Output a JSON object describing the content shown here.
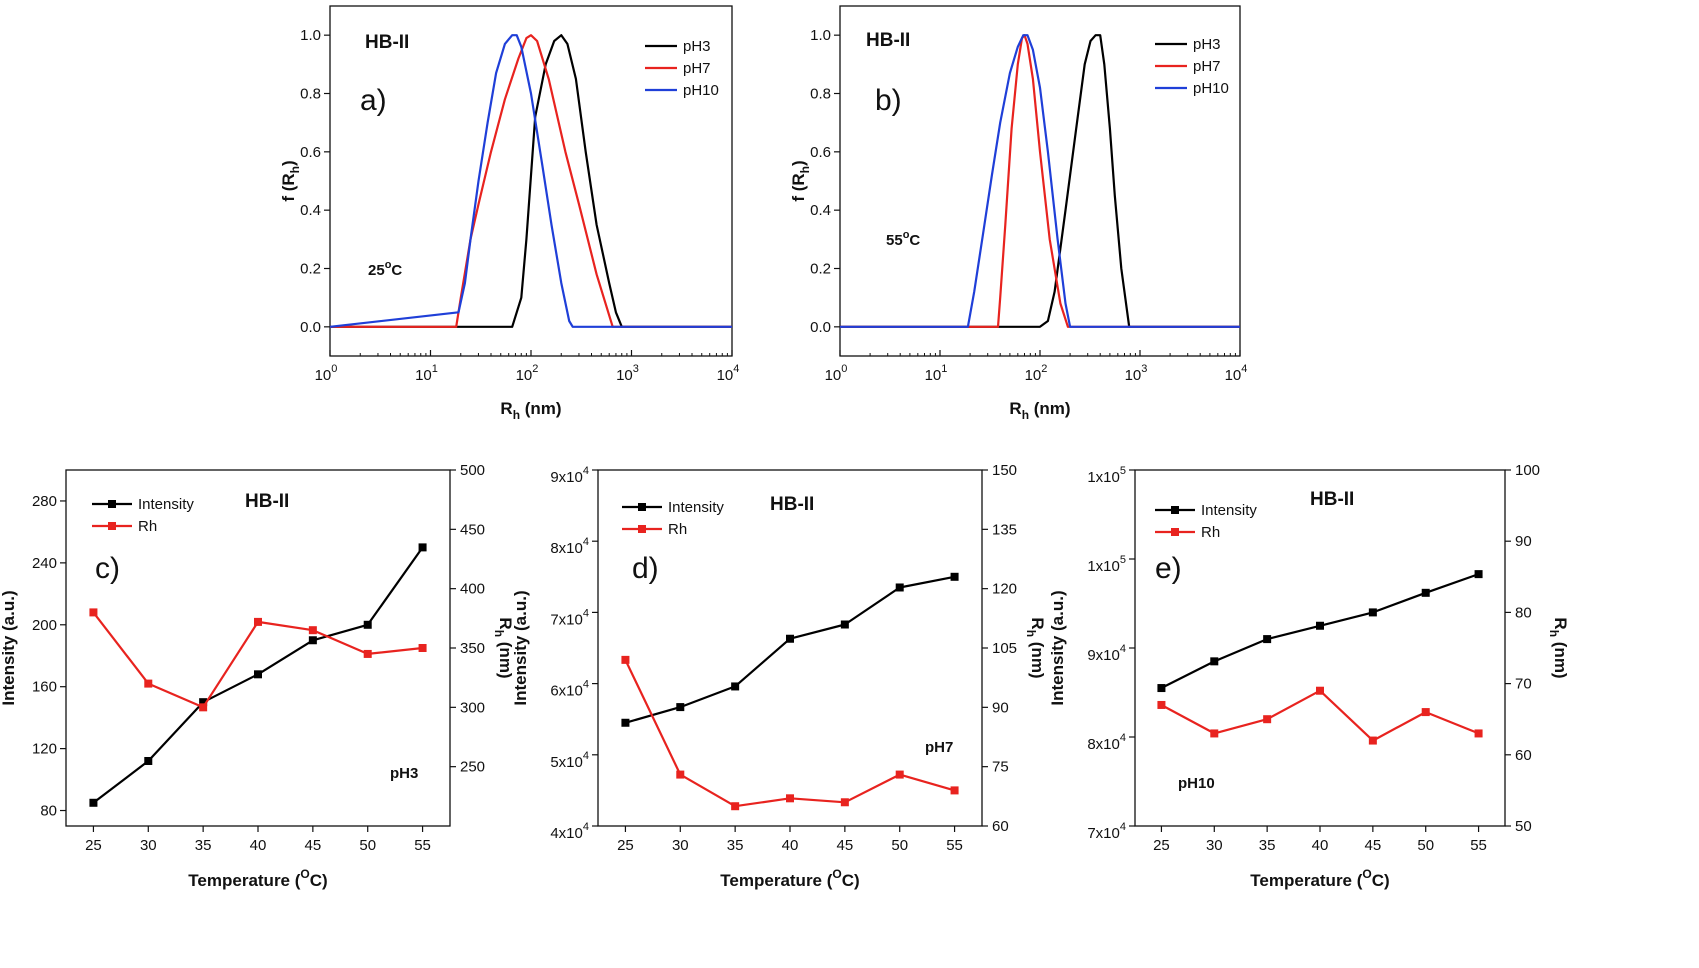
{
  "figure": {
    "title": "",
    "chart_data": [
      {
        "panel": "a",
        "type": "line",
        "panel_label": "a)",
        "sample_label": "HB-II",
        "condition_label": "25",
        "condition_unit": "oC",
        "xlabel": "Rh (nm)",
        "xlabel_main": "R",
        "xlabel_sub": "h",
        "xlabel_tail": " (nm)",
        "ylabel": "f (Rh)",
        "ylabel_main": "f (R",
        "ylabel_sub": "h",
        "ylabel_tail": ")",
        "xscale": "log",
        "xlim": [
          1,
          10000
        ],
        "ylim": [
          -0.1,
          1.1
        ],
        "x_ticks": [
          {
            "base": "10",
            "exp": "0",
            "value": 1
          },
          {
            "base": "10",
            "exp": "1",
            "value": 10
          },
          {
            "base": "10",
            "exp": "2",
            "value": 100
          },
          {
            "base": "10",
            "exp": "3",
            "value": 1000
          },
          {
            "base": "10",
            "exp": "4",
            "value": 10000
          }
        ],
        "y_ticks": [
          "0.0",
          "0.2",
          "0.4",
          "0.6",
          "0.8",
          "1.0"
        ],
        "y_tick_values": [
          0,
          0.2,
          0.4,
          0.6,
          0.8,
          1.0
        ],
        "legend_position": "top-right",
        "series": [
          {
            "name": "pH3",
            "color": "#000000",
            "x": [
              1,
              65,
              80,
              90,
              110,
              140,
              170,
              200,
              230,
              280,
              350,
              450,
              600,
              700,
              800,
              10000
            ],
            "y": [
              0,
              0,
              0.1,
              0.3,
              0.72,
              0.9,
              0.98,
              1.0,
              0.97,
              0.85,
              0.6,
              0.35,
              0.15,
              0.05,
              0,
              0
            ]
          },
          {
            "name": "pH7",
            "color": "#e8231f",
            "x": [
              1,
              18,
              20,
              25,
              30,
              40,
              55,
              75,
              90,
              100,
              115,
              150,
              220,
              300,
              450,
              650,
              10000
            ],
            "y": [
              0,
              0,
              0.1,
              0.3,
              0.42,
              0.6,
              0.78,
              0.92,
              0.99,
              1.0,
              0.98,
              0.85,
              0.6,
              0.42,
              0.18,
              0,
              0
            ]
          },
          {
            "name": "pH10",
            "color": "#1f3fd8",
            "x": [
              1,
              19,
              22,
              25,
              30,
              37,
              45,
              55,
              65,
              72,
              80,
              100,
              130,
              160,
              200,
              240,
              260,
              10000
            ],
            "y": [
              0,
              0.05,
              0.15,
              0.3,
              0.5,
              0.7,
              0.87,
              0.97,
              1.0,
              1.0,
              0.96,
              0.8,
              0.55,
              0.35,
              0.15,
              0.02,
              0,
              0
            ]
          }
        ]
      },
      {
        "panel": "b",
        "type": "line",
        "panel_label": "b)",
        "sample_label": "HB-II",
        "condition_label": "55",
        "condition_unit": "oC",
        "xlabel": "Rh (nm)",
        "xlabel_main": "R",
        "xlabel_sub": "h",
        "xlabel_tail": " (nm)",
        "ylabel": "f (Rh)",
        "ylabel_main": "f (R",
        "ylabel_sub": "h",
        "ylabel_tail": ")",
        "xscale": "log",
        "xlim": [
          1,
          10000
        ],
        "ylim": [
          -0.1,
          1.1
        ],
        "x_ticks": [
          {
            "base": "10",
            "exp": "0",
            "value": 1
          },
          {
            "base": "10",
            "exp": "1",
            "value": 10
          },
          {
            "base": "10",
            "exp": "2",
            "value": 100
          },
          {
            "base": "10",
            "exp": "3",
            "value": 1000
          },
          {
            "base": "10",
            "exp": "4",
            "value": 10000
          }
        ],
        "y_ticks": [
          "0.0",
          "0.2",
          "0.4",
          "0.6",
          "0.8",
          "1.0"
        ],
        "y_tick_values": [
          0,
          0.2,
          0.4,
          0.6,
          0.8,
          1.0
        ],
        "legend_position": "top-right",
        "series": [
          {
            "name": "pH3",
            "color": "#000000",
            "x": [
              1,
              100,
              120,
              140,
              180,
              230,
              280,
              320,
              360,
              400,
              440,
              500,
              560,
              650,
              780,
              10000
            ],
            "y": [
              0,
              0,
              0.02,
              0.12,
              0.4,
              0.68,
              0.9,
              0.98,
              1.0,
              1.0,
              0.9,
              0.68,
              0.45,
              0.2,
              0,
              0
            ]
          },
          {
            "name": "pH7",
            "color": "#e8231f",
            "x": [
              1,
              38,
              40,
              45,
              52,
              60,
              66,
              70,
              75,
              85,
              100,
              125,
              160,
              190,
              10000
            ],
            "y": [
              0,
              0,
              0.1,
              0.35,
              0.68,
              0.9,
              0.99,
              1.0,
              0.97,
              0.85,
              0.6,
              0.3,
              0.08,
              0,
              0
            ]
          },
          {
            "name": "pH10",
            "color": "#1f3fd8",
            "x": [
              1,
              19,
              22,
              27,
              33,
              40,
              50,
              60,
              68,
              75,
              85,
              100,
              120,
              150,
              180,
              200,
              10000
            ],
            "y": [
              0,
              0,
              0.12,
              0.32,
              0.52,
              0.7,
              0.87,
              0.96,
              1.0,
              1.0,
              0.95,
              0.82,
              0.6,
              0.3,
              0.08,
              0,
              0
            ]
          }
        ]
      },
      {
        "panel": "c",
        "type": "line",
        "panel_label": "c)",
        "sample_label": "HB-II",
        "condition_label": "pH3",
        "xlabel": "Temperature (oC)",
        "xlabel_main": "Temperature (",
        "xlabel_sup": "O",
        "xlabel_tail": "C)",
        "ylabel_left": "Intensity (a.u.)",
        "ylabel_right": "Rh (nm)",
        "ylabel_right_main": "R",
        "ylabel_right_sub": "h",
        "ylabel_right_tail": " (nm)",
        "xlim": [
          22.5,
          57.5
        ],
        "x_ticks": [
          "25",
          "30",
          "35",
          "40",
          "45",
          "50",
          "55"
        ],
        "x_tick_values": [
          25,
          30,
          35,
          40,
          45,
          50,
          55
        ],
        "ylim_left": [
          70,
          300
        ],
        "y_left_ticks": [
          "80",
          "120",
          "160",
          "200",
          "240",
          "280"
        ],
        "y_left_tick_values": [
          80,
          120,
          160,
          200,
          240,
          280
        ],
        "ylim_right": [
          200,
          500
        ],
        "y_right_ticks": [
          "250",
          "300",
          "350",
          "400",
          "450",
          "500"
        ],
        "y_right_tick_values": [
          250,
          300,
          350,
          400,
          450,
          500
        ],
        "legend_position": "top-left",
        "series": [
          {
            "name": "Intensity",
            "color": "#000000",
            "axis": "left",
            "x": [
              25,
              30,
              35,
              40,
              45,
              50,
              55
            ],
            "y": [
              85,
              112,
              150,
              168,
              190,
              200,
              250
            ]
          },
          {
            "name": "Rh",
            "color": "#e8231f",
            "axis": "right",
            "x": [
              25,
              30,
              35,
              40,
              45,
              50,
              55
            ],
            "y": [
              380,
              320,
              300,
              372,
              365,
              345,
              350
            ]
          }
        ]
      },
      {
        "panel": "d",
        "type": "line",
        "panel_label": "d)",
        "sample_label": "HB-II",
        "condition_label": "pH7",
        "xlabel": "Temperature (oC)",
        "xlabel_main": "Temperature (",
        "xlabel_sup": "O",
        "xlabel_tail": "C)",
        "ylabel_left": "Intensity (a.u.)",
        "ylabel_right": "Rh (nm)",
        "ylabel_right_main": "R",
        "ylabel_right_sub": "h",
        "ylabel_right_tail": " (nm)",
        "xlim": [
          22.5,
          57.5
        ],
        "x_ticks": [
          "25",
          "30",
          "35",
          "40",
          "45",
          "50",
          "55"
        ],
        "x_tick_values": [
          25,
          30,
          35,
          40,
          45,
          50,
          55
        ],
        "ylim_left": [
          40000,
          90000
        ],
        "y_left_ticks": [
          {
            "base": "4x10",
            "exp": "4",
            "value": 40000
          },
          {
            "base": "5x10",
            "exp": "4",
            "value": 50000
          },
          {
            "base": "6x10",
            "exp": "4",
            "value": 60000
          },
          {
            "base": "7x10",
            "exp": "4",
            "value": 70000
          },
          {
            "base": "8x10",
            "exp": "4",
            "value": 80000
          },
          {
            "base": "9x10",
            "exp": "4",
            "value": 90000
          }
        ],
        "ylim_right": [
          60,
          150
        ],
        "y_right_ticks": [
          "60",
          "75",
          "90",
          "105",
          "120",
          "135",
          "150"
        ],
        "y_right_tick_values": [
          60,
          75,
          90,
          105,
          120,
          135,
          150
        ],
        "legend_position": "top-left",
        "series": [
          {
            "name": "Intensity",
            "color": "#000000",
            "axis": "left",
            "x": [
              25,
              30,
              35,
              40,
              45,
              50,
              55
            ],
            "y": [
              54500,
              56700,
              59600,
              66300,
              68300,
              73500,
              75000
            ]
          },
          {
            "name": "Rh",
            "color": "#e8231f",
            "axis": "right",
            "x": [
              25,
              30,
              35,
              40,
              45,
              50,
              55
            ],
            "y": [
              102,
              73,
              65,
              67,
              66,
              73,
              69
            ]
          }
        ]
      },
      {
        "panel": "e",
        "type": "line",
        "panel_label": "e)",
        "sample_label": "HB-II",
        "condition_label": "pH10",
        "xlabel": "Temperature (oC)",
        "xlabel_main": "Temperature (",
        "xlabel_sup": "O",
        "xlabel_tail": "C)",
        "ylabel_left": "Intensity (a.u.)",
        "ylabel_right": "Rh (nm)",
        "ylabel_right_main": "R",
        "ylabel_right_sub": "h",
        "ylabel_right_tail": " (nm)",
        "xlim": [
          22.5,
          57.5
        ],
        "x_ticks": [
          "25",
          "30",
          "35",
          "40",
          "45",
          "50",
          "55"
        ],
        "x_tick_values": [
          25,
          30,
          35,
          40,
          45,
          50,
          55
        ],
        "ylim_left": [
          70000,
          110000
        ],
        "y_left_ticks": [
          {
            "base": "7x10",
            "exp": "4",
            "value": 70000
          },
          {
            "base": "8x10",
            "exp": "4",
            "value": 80000
          },
          {
            "base": "9x10",
            "exp": "4",
            "value": 90000
          },
          {
            "base": "1x10",
            "exp": "5",
            "value": 100000
          },
          {
            "base": "1x10",
            "exp": "5",
            "value": 110000
          }
        ],
        "ylim_right": [
          50,
          100
        ],
        "y_right_ticks": [
          "50",
          "60",
          "70",
          "80",
          "90",
          "100"
        ],
        "y_right_tick_values": [
          50,
          60,
          70,
          80,
          90,
          100
        ],
        "legend_position": "top-left",
        "series": [
          {
            "name": "Intensity",
            "color": "#000000",
            "axis": "left",
            "x": [
              25,
              30,
              35,
              40,
              45,
              50,
              55
            ],
            "y": [
              85500,
              88500,
              91000,
              92500,
              94000,
              96200,
              98300
            ]
          },
          {
            "name": "Rh",
            "color": "#e8231f",
            "axis": "right",
            "x": [
              25,
              30,
              35,
              40,
              45,
              50,
              55
            ],
            "y": [
              67,
              63,
              65,
              69,
              62,
              66,
              63
            ]
          }
        ]
      }
    ]
  }
}
